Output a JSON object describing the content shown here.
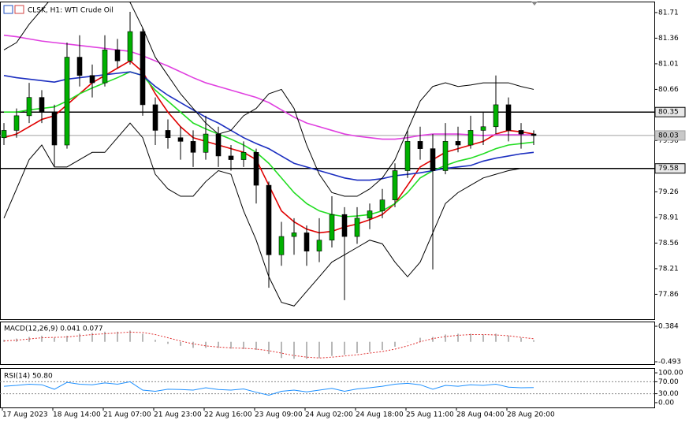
{
  "chart_data": [
    {
      "type": "candlestick",
      "title": "CLSK, H1: WTI Crude Oil",
      "categories": [
        "17 Aug 2023",
        null,
        null,
        null,
        "18 Aug 14:00",
        null,
        null,
        null,
        "21 Aug 07:00",
        null,
        null,
        null,
        "21 Aug 23:00",
        null,
        null,
        null,
        "22 Aug 16:00",
        null,
        null,
        null,
        "23 Aug 09:00",
        null,
        null,
        null,
        "24 Aug 02:00",
        null,
        null,
        null,
        "24 Aug 18:00",
        null,
        null,
        null,
        "25 Aug 11:00",
        null,
        null,
        null,
        "28 Aug 04:00",
        null,
        null,
        null,
        "28 Aug 20:00",
        null,
        null
      ],
      "ohlc": [
        [
          80.0,
          80.2,
          79.9,
          80.1
        ],
        [
          80.1,
          80.4,
          80.0,
          80.3
        ],
        [
          80.3,
          80.75,
          80.2,
          80.55
        ],
        [
          80.55,
          80.65,
          80.2,
          80.35
        ],
        [
          80.35,
          80.45,
          79.6,
          79.9
        ],
        [
          79.9,
          81.3,
          79.85,
          81.1
        ],
        [
          81.1,
          81.4,
          80.7,
          80.85
        ],
        [
          80.85,
          81.0,
          80.55,
          80.75
        ],
        [
          80.75,
          81.4,
          80.7,
          81.2
        ],
        [
          81.2,
          81.35,
          80.95,
          81.05
        ],
        [
          81.05,
          81.72,
          81.0,
          81.45
        ],
        [
          81.45,
          81.5,
          80.3,
          80.45
        ],
        [
          80.45,
          80.55,
          79.9,
          80.1
        ],
        [
          80.1,
          80.25,
          79.85,
          80.0
        ],
        [
          80.0,
          80.15,
          79.7,
          79.95
        ],
        [
          79.95,
          80.1,
          79.6,
          79.8
        ],
        [
          79.8,
          80.3,
          79.7,
          80.05
        ],
        [
          80.05,
          80.15,
          79.6,
          79.75
        ],
        [
          79.75,
          79.9,
          79.55,
          79.7
        ],
        [
          79.7,
          79.95,
          79.6,
          79.8
        ],
        [
          79.8,
          79.85,
          79.1,
          79.35
        ],
        [
          79.35,
          79.4,
          77.95,
          78.4
        ],
        [
          78.4,
          78.85,
          78.25,
          78.65
        ],
        [
          78.65,
          78.9,
          78.4,
          78.7
        ],
        [
          78.7,
          78.8,
          78.25,
          78.45
        ],
        [
          78.45,
          78.9,
          78.3,
          78.6
        ],
        [
          78.6,
          79.2,
          78.5,
          78.95
        ],
        [
          78.95,
          79.05,
          77.78,
          78.65
        ],
        [
          78.65,
          79.05,
          78.55,
          78.9
        ],
        [
          78.9,
          79.1,
          78.75,
          79.0
        ],
        [
          79.0,
          79.3,
          78.9,
          79.15
        ],
        [
          79.15,
          79.65,
          79.05,
          79.55
        ],
        [
          79.55,
          80.1,
          79.45,
          79.95
        ],
        [
          79.95,
          80.15,
          79.7,
          79.85
        ],
        [
          79.85,
          80.05,
          78.2,
          79.55
        ],
        [
          79.55,
          80.2,
          79.5,
          79.95
        ],
        [
          79.95,
          80.15,
          79.8,
          79.9
        ],
        [
          79.9,
          80.3,
          79.85,
          80.1
        ],
        [
          80.1,
          80.35,
          79.9,
          80.15
        ],
        [
          80.15,
          80.85,
          80.05,
          80.45
        ],
        [
          80.45,
          80.55,
          79.95,
          80.1
        ],
        [
          80.1,
          80.2,
          79.85,
          80.05
        ],
        [
          80.05,
          80.1,
          79.9,
          80.03
        ]
      ],
      "up_color": "#00b000",
      "down_color": "#000000",
      "series": [
        {
          "color": "#e00000",
          "values": [
            80.0,
            80.05,
            80.15,
            80.25,
            80.3,
            80.45,
            80.6,
            80.75,
            80.85,
            80.95,
            81.05,
            80.9,
            80.6,
            80.35,
            80.15,
            80.0,
            79.95,
            79.9,
            79.85,
            79.8,
            79.7,
            79.35,
            79.0,
            78.85,
            78.75,
            78.7,
            78.72,
            78.78,
            78.82,
            78.88,
            78.95,
            79.1,
            79.35,
            79.6,
            79.7,
            79.8,
            79.85,
            79.9,
            79.95,
            80.05,
            80.1,
            80.08,
            80.05
          ]
        },
        {
          "color": "#22dd22",
          "values": [
            80.35,
            80.35,
            80.38,
            80.4,
            80.42,
            80.5,
            80.6,
            80.68,
            80.75,
            80.82,
            80.9,
            80.85,
            80.65,
            80.5,
            80.35,
            80.2,
            80.12,
            80.05,
            79.98,
            79.9,
            79.8,
            79.65,
            79.45,
            79.25,
            79.1,
            79.0,
            78.95,
            78.92,
            78.93,
            78.95,
            79.0,
            79.1,
            79.25,
            79.45,
            79.55,
            79.62,
            79.68,
            79.72,
            79.78,
            79.85,
            79.9,
            79.92,
            79.94
          ]
        },
        {
          "color": "#1c2fc0",
          "values": [
            80.85,
            80.82,
            80.8,
            80.78,
            80.76,
            80.8,
            80.82,
            80.84,
            80.86,
            80.88,
            80.9,
            80.85,
            80.7,
            80.58,
            80.48,
            80.38,
            80.28,
            80.2,
            80.1,
            80.0,
            79.92,
            79.85,
            79.75,
            79.65,
            79.6,
            79.55,
            79.5,
            79.45,
            79.42,
            79.42,
            79.44,
            79.48,
            79.5,
            79.52,
            79.55,
            79.58,
            79.6,
            79.62,
            79.68,
            79.72,
            79.75,
            79.78,
            79.8
          ]
        },
        {
          "color": "#e040e0",
          "values": [
            81.4,
            81.38,
            81.35,
            81.32,
            81.3,
            81.28,
            81.26,
            81.24,
            81.22,
            81.2,
            81.18,
            81.12,
            81.05,
            80.98,
            80.9,
            80.82,
            80.75,
            80.7,
            80.65,
            80.6,
            80.55,
            80.48,
            80.38,
            80.28,
            80.2,
            80.15,
            80.1,
            80.05,
            80.02,
            80.0,
            79.98,
            79.98,
            80.0,
            80.03,
            80.05,
            80.05,
            80.05,
            80.04,
            80.03,
            80.04,
            80.04,
            80.04,
            80.04
          ]
        },
        {
          "color": "#000000",
          "values": [
            81.2,
            81.3,
            81.55,
            81.75,
            81.95,
            81.92,
            81.9,
            81.95,
            82.0,
            81.9,
            81.85,
            81.5,
            81.1,
            80.85,
            80.6,
            80.4,
            80.2,
            80.05,
            80.1,
            80.3,
            80.4,
            80.6,
            80.66,
            80.4,
            79.9,
            79.5,
            79.25,
            79.2,
            79.2,
            79.3,
            79.45,
            79.7,
            80.1,
            80.5,
            80.7,
            80.75,
            80.7,
            80.72,
            80.75,
            80.75,
            80.75,
            80.7,
            80.66
          ]
        },
        {
          "color": "#000000",
          "values": [
            78.9,
            79.3,
            79.7,
            79.9,
            79.6,
            79.6,
            79.7,
            79.8,
            79.8,
            80.0,
            80.2,
            80.0,
            79.5,
            79.3,
            79.2,
            79.2,
            79.4,
            79.55,
            79.5,
            79.0,
            78.6,
            78.1,
            77.75,
            77.7,
            77.9,
            78.1,
            78.3,
            78.4,
            78.5,
            78.6,
            78.55,
            78.3,
            78.1,
            78.3,
            78.7,
            79.1,
            79.25,
            79.35,
            79.45,
            79.5,
            79.55,
            79.58,
            79.58
          ]
        }
      ],
      "levels": [
        {
          "value": 80.35,
          "color": "#000000"
        },
        {
          "value": 80.03,
          "color": "#a0a0a0"
        },
        {
          "value": 79.58,
          "color": "#000000"
        }
      ],
      "ylim": [
        77.52,
        81.86
      ],
      "yticks": [
        81.71,
        81.36,
        81.01,
        80.66,
        79.96,
        79.26,
        78.91,
        78.56,
        78.21,
        77.86
      ]
    },
    {
      "type": "macd",
      "title": "MACD(12,26,9) 0.041 0.077",
      "histogram": [
        0.05,
        0.08,
        0.12,
        0.15,
        0.1,
        0.15,
        0.2,
        0.22,
        0.25,
        0.25,
        0.28,
        0.2,
        0.05,
        -0.05,
        -0.1,
        -0.15,
        -0.15,
        -0.15,
        -0.17,
        -0.18,
        -0.2,
        -0.3,
        -0.4,
        -0.42,
        -0.42,
        -0.4,
        -0.35,
        -0.32,
        -0.28,
        -0.25,
        -0.2,
        -0.12,
        0.0,
        0.1,
        0.12,
        0.18,
        0.2,
        0.2,
        0.18,
        0.2,
        0.15,
        0.1,
        0.041
      ],
      "signal": [
        0.02,
        0.04,
        0.07,
        0.1,
        0.11,
        0.12,
        0.15,
        0.18,
        0.2,
        0.22,
        0.24,
        0.23,
        0.18,
        0.1,
        0.02,
        -0.05,
        -0.1,
        -0.13,
        -0.15,
        -0.16,
        -0.18,
        -0.22,
        -0.28,
        -0.34,
        -0.38,
        -0.4,
        -0.38,
        -0.35,
        -0.32,
        -0.28,
        -0.24,
        -0.18,
        -0.1,
        0.0,
        0.08,
        0.13,
        0.16,
        0.18,
        0.18,
        0.17,
        0.15,
        0.11,
        0.077
      ],
      "histogram_color": "#b8b8b8",
      "signal_color": "#e03030",
      "ylim": [
        -0.551,
        0.501
      ],
      "yticks": [
        0.384,
        -0.493
      ]
    },
    {
      "type": "rsi",
      "title": "RSI(14) 50.80",
      "values": [
        55,
        58,
        62,
        60,
        45,
        68,
        62,
        60,
        66,
        62,
        70,
        42,
        38,
        45,
        44,
        42,
        50,
        44,
        42,
        46,
        35,
        25,
        38,
        42,
        36,
        42,
        48,
        38,
        46,
        50,
        55,
        62,
        65,
        60,
        45,
        58,
        55,
        60,
        58,
        62,
        52,
        50,
        50.8
      ],
      "color": "#1e90ff",
      "levels": [
        70,
        30
      ],
      "ylim": [
        -16,
        116
      ],
      "yticks": [
        {
          "value": 100,
          "label": "100.00"
        },
        {
          "value": 70,
          "label": "70.00"
        },
        {
          "value": 30,
          "label": "30.00"
        },
        {
          "value": 0,
          "label": "0.00"
        }
      ]
    }
  ]
}
